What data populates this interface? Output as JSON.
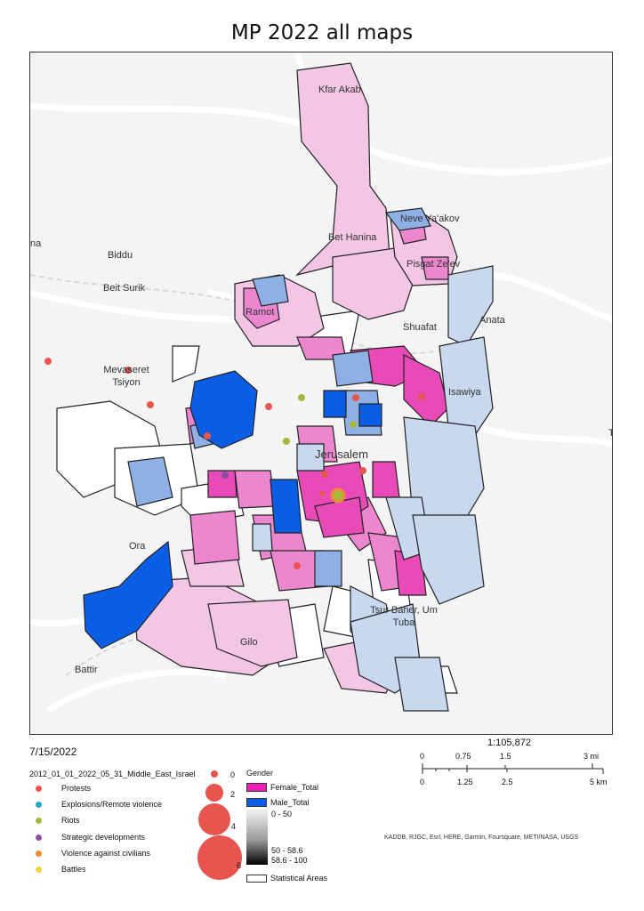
{
  "title": "MP 2022 all maps",
  "date": "7/15/2022",
  "scale_ratio": "1:105,872",
  "places": [
    "Kfar Akab",
    "Bet Hanina",
    "Neve Ya'akov",
    "Pisgat Ze'ev",
    "Biddu",
    "Beit Surik",
    "Ramot",
    "Shuafat",
    "Anata",
    "Mevaseret Tsiyon",
    "Isawiya",
    "Jerusalem",
    "Ora",
    "Tsur Baher, Um Tuba",
    "Gilo",
    "Battir",
    "na",
    "T"
  ],
  "events_legend": {
    "title": "2012_01_01_2022_05_31_Middle_East_Israel",
    "items": [
      {
        "label": "Protests",
        "color": "#e8554f"
      },
      {
        "label": "Explosions/Remote violence",
        "color": "#29a7c6"
      },
      {
        "label": "Riots",
        "color": "#a7b83d"
      },
      {
        "label": "Strategic developments",
        "color": "#8e4fa0"
      },
      {
        "label": "Violence against civilians",
        "color": "#f08a35"
      },
      {
        "label": "Battles",
        "color": "#f4d23a"
      }
    ],
    "sizes": [
      "0",
      "2",
      "4",
      "6"
    ]
  },
  "gender_legend": {
    "title": "Gender",
    "female_label": "Female_Total",
    "male_label": "Male_Total",
    "female_color": "#f01fb4",
    "male_color": "#0a5ee6",
    "ramp_labels": [
      "0 - 50",
      "50 - 58.6",
      "58.6 - 100"
    ],
    "areas_label": "Statistical Areas"
  },
  "scalebar": {
    "miles": [
      "0",
      "0.75",
      "1.5",
      "3 mi"
    ],
    "km": [
      "0",
      "1.25",
      "2.5",
      "5 km"
    ]
  },
  "credits": "KADDB, RJGC, Esri, HERE, Garmin, Foursquare, METI/NASA, USGS",
  "colors": {
    "light_pink": "#f4c6e6",
    "mid_pink": "#ec86cf",
    "hot_pink": "#e84ab8",
    "light_blue": "#c8d8ef",
    "mid_blue": "#8fb0e4",
    "blue": "#0a5ee6"
  }
}
